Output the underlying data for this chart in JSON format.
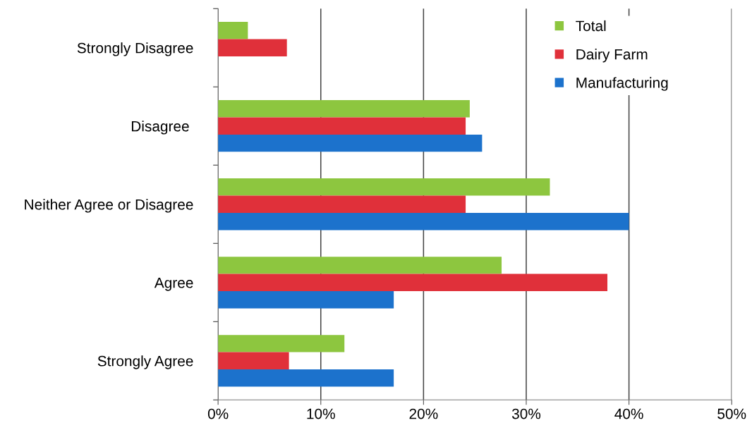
{
  "chart_data": {
    "type": "bar",
    "orientation": "horizontal",
    "categories": [
      "Strongly Disagree",
      "Disagree ",
      "Neither Agree or Disagree",
      "Agree",
      "Strongly Agree"
    ],
    "series": [
      {
        "name": "Total",
        "color": "#8dc63f",
        "values": [
          2.9,
          24.5,
          32.3,
          27.6,
          12.3
        ]
      },
      {
        "name": "Dairy Farm",
        "color": "#e0303a",
        "values": [
          6.7,
          24.1,
          24.1,
          37.9,
          6.9
        ]
      },
      {
        "name": "Manufacturing",
        "color": "#1c72cc",
        "values": [
          0,
          25.7,
          40.0,
          17.1,
          17.1
        ]
      }
    ],
    "xlim": [
      0,
      50
    ],
    "xticks": [
      {
        "value": 0,
        "label": "0%"
      },
      {
        "value": 10,
        "label": "10%"
      },
      {
        "value": 20,
        "label": "20%"
      },
      {
        "value": 30,
        "label": "30%"
      },
      {
        "value": 40,
        "label": "40%"
      },
      {
        "value": 50,
        "label": "50%"
      }
    ],
    "grid": "x",
    "legend": "top right"
  }
}
